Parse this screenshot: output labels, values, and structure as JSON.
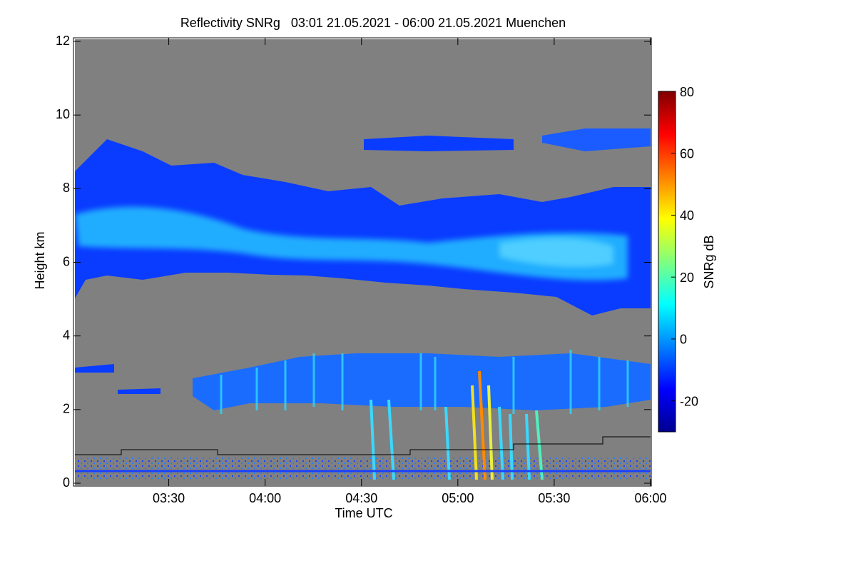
{
  "chart_data": {
    "type": "heatmap",
    "title": "Reflectivity SNRg   03:01 21.05.2021 - 06:00 21.05.2021 Muenchen",
    "x_label": "Time UTC",
    "y_label": "Height km",
    "xlim": [
      181,
      360
    ],
    "xticks": [
      {
        "value": 210,
        "label": "03:30"
      },
      {
        "value": 240,
        "label": "04:00"
      },
      {
        "value": 270,
        "label": "04:30"
      },
      {
        "value": 300,
        "label": "05:00"
      },
      {
        "value": 330,
        "label": "05:30"
      },
      {
        "value": 360,
        "label": "06:00"
      }
    ],
    "ylim": [
      0,
      12
    ],
    "yticks": [
      0,
      2,
      4,
      6,
      8,
      10,
      12
    ],
    "colorbar": {
      "label": "SNRg dB",
      "clim": [
        -30,
        80
      ],
      "ticks": [
        -20,
        0,
        20,
        40,
        60,
        80
      ],
      "colormap": "jet"
    }
  }
}
